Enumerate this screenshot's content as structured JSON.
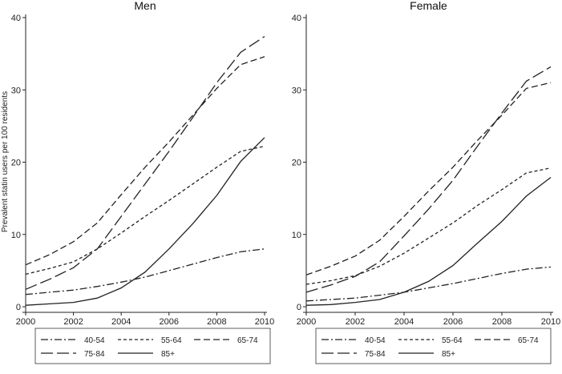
{
  "chart_data": {
    "type": "line",
    "ylabel": "Prevalent statin users per 100 residents",
    "x_ticks": [
      2000,
      2002,
      2004,
      2006,
      2008,
      2010
    ],
    "y_ticks": [
      0,
      10,
      20,
      30,
      40
    ],
    "xlim": [
      2000,
      2010
    ],
    "ylim": [
      0,
      40
    ],
    "grid": false,
    "legend_position": "bottom",
    "legend_styles": [
      "dash-dot",
      "short-dash",
      "medium-dash",
      "long-dash",
      "solid"
    ],
    "panels": [
      {
        "title": "Men",
        "x": [
          2000,
          2001,
          2002,
          2003,
          2004,
          2005,
          2006,
          2007,
          2008,
          2009,
          2010
        ],
        "series": [
          {
            "name": "40-54",
            "values": [
              1.7,
              2.0,
              2.3,
              2.8,
              3.4,
              4.1,
              5.0,
              5.9,
              6.8,
              7.6,
              8.0
            ]
          },
          {
            "name": "55-64",
            "values": [
              4.5,
              5.3,
              6.2,
              8.0,
              10.2,
              12.5,
              14.7,
              17.0,
              19.3,
              21.5,
              22.2
            ]
          },
          {
            "name": "65-74",
            "values": [
              5.8,
              7.2,
              9.0,
              11.6,
              15.5,
              19.3,
              22.8,
              26.5,
              30.2,
              33.5,
              34.6
            ]
          },
          {
            "name": "75-84",
            "values": [
              2.4,
              3.8,
              5.4,
              8.0,
              12.5,
              17.0,
              21.5,
              26.2,
              31.0,
              35.2,
              37.4
            ]
          },
          {
            "name": "85+",
            "values": [
              0.2,
              0.4,
              0.6,
              1.2,
              2.6,
              4.8,
              8.0,
              11.5,
              15.4,
              20.1,
              23.4
            ]
          }
        ]
      },
      {
        "title": "Female",
        "x": [
          2000,
          2001,
          2002,
          2003,
          2004,
          2005,
          2006,
          2007,
          2008,
          2009,
          2010
        ],
        "series": [
          {
            "name": "40-54",
            "values": [
              0.8,
              1.0,
              1.2,
              1.6,
              2.0,
              2.6,
              3.2,
              3.9,
              4.6,
              5.2,
              5.5
            ]
          },
          {
            "name": "55-64",
            "values": [
              3.1,
              3.6,
              4.3,
              5.6,
              7.4,
              9.5,
              11.6,
              14.0,
              16.2,
              18.5,
              19.2
            ]
          },
          {
            "name": "65-74",
            "values": [
              4.4,
              5.6,
              7.0,
              9.2,
              12.5,
              16.0,
              19.3,
              23.0,
              26.5,
              30.2,
              31.0
            ]
          },
          {
            "name": "75-84",
            "values": [
              2.0,
              3.0,
              4.2,
              6.2,
              9.8,
              13.5,
              17.5,
              22.2,
              26.8,
              31.2,
              33.2
            ]
          },
          {
            "name": "85+",
            "values": [
              0.2,
              0.3,
              0.6,
              1.0,
              2.0,
              3.5,
              5.7,
              8.8,
              11.8,
              15.3,
              17.9
            ]
          }
        ]
      }
    ]
  }
}
